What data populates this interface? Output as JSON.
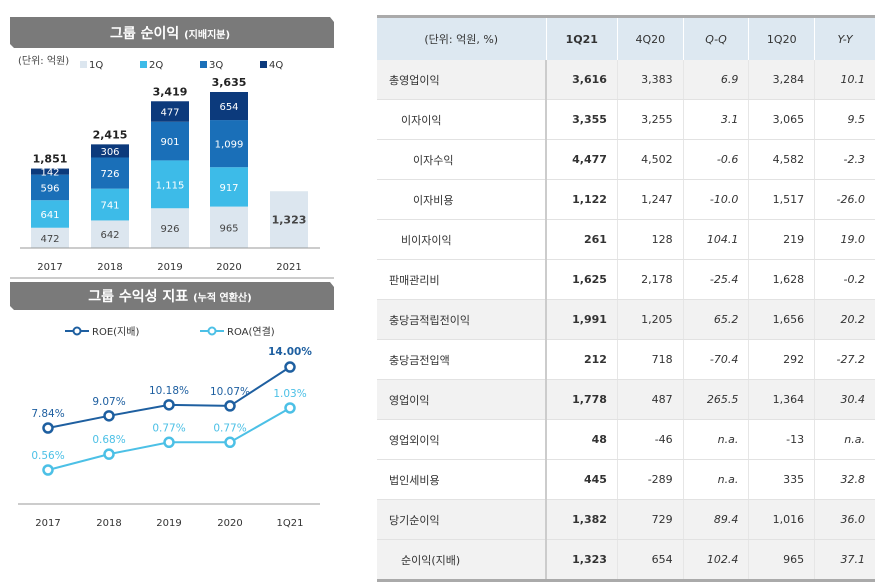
{
  "chart_data": [
    {
      "type": "bar",
      "title": "그룹 순이익",
      "subtitle": "(지배지분)",
      "unit_label": "(단위: 억원)",
      "categories": [
        "2017",
        "2018",
        "2019",
        "2020",
        "2021"
      ],
      "series": [
        {
          "name": "1Q",
          "color": "#dce6ef",
          "values": [
            472,
            642,
            926,
            965,
            1323
          ]
        },
        {
          "name": "2Q",
          "color": "#3dbbe8",
          "values": [
            641,
            741,
            1115,
            917,
            null
          ]
        },
        {
          "name": "3Q",
          "color": "#1a6fb8",
          "values": [
            596,
            726,
            901,
            1099,
            null
          ]
        },
        {
          "name": "4Q",
          "color": "#0c3a7c",
          "values": [
            142,
            306,
            477,
            654,
            null
          ]
        }
      ],
      "value_labels": [
        [
          "472",
          "641",
          "596",
          "142"
        ],
        [
          "642",
          "741",
          "726",
          "306"
        ],
        [
          "926",
          "1,115",
          "901",
          "477"
        ],
        [
          "965",
          "917",
          "1,099",
          "654"
        ],
        [
          "1,323"
        ]
      ],
      "totals": [
        "1,851",
        "2,415",
        "3,419",
        "3,635",
        ""
      ],
      "stacked": true,
      "legend": "top"
    },
    {
      "type": "line",
      "title": "그룹 수익성 지표",
      "subtitle": "(누적 연환산)",
      "categories": [
        "2017",
        "2018",
        "2019",
        "2020",
        "1Q21"
      ],
      "series": [
        {
          "name": "ROE(지배)",
          "color": "#1e5fa0",
          "values": [
            7.84,
            9.07,
            10.18,
            10.07,
            14.0
          ],
          "labels": [
            "7.84%",
            "9.07%",
            "10.18%",
            "10.07%",
            "14.00%"
          ]
        },
        {
          "name": "ROA(연결)",
          "color": "#4cc0e6",
          "values": [
            0.56,
            0.68,
            0.77,
            0.77,
            1.03
          ],
          "labels": [
            "0.56%",
            "0.68%",
            "0.77%",
            "0.77%",
            "1.03%"
          ]
        }
      ],
      "legend": "top"
    }
  ],
  "table": {
    "header": [
      "(단위: 억원, %)",
      "1Q21",
      "4Q20",
      "Q-Q",
      "1Q20",
      "Y-Y"
    ],
    "rows": [
      {
        "label": "총영업이익",
        "indent": 0,
        "shade": true,
        "cells": [
          "3,616",
          "3,383",
          "6.9",
          "3,284",
          "10.1"
        ]
      },
      {
        "label": "이자이익",
        "indent": 1,
        "shade": false,
        "cells": [
          "3,355",
          "3,255",
          "3.1",
          "3,065",
          "9.5"
        ]
      },
      {
        "label": "이자수익",
        "indent": 2,
        "shade": false,
        "cells": [
          "4,477",
          "4,502",
          "-0.6",
          "4,582",
          "-2.3"
        ]
      },
      {
        "label": "이자비용",
        "indent": 2,
        "shade": false,
        "cells": [
          "1,122",
          "1,247",
          "-10.0",
          "1,517",
          "-26.0"
        ]
      },
      {
        "label": "비이자이익",
        "indent": 1,
        "shade": false,
        "cells": [
          "261",
          "128",
          "104.1",
          "219",
          "19.0"
        ]
      },
      {
        "label": "판매관리비",
        "indent": 0,
        "shade": false,
        "cells": [
          "1,625",
          "2,178",
          "-25.4",
          "1,628",
          "-0.2"
        ]
      },
      {
        "label": "충당금적립전이익",
        "indent": 0,
        "shade": true,
        "cells": [
          "1,991",
          "1,205",
          "65.2",
          "1,656",
          "20.2"
        ]
      },
      {
        "label": "충당금전입액",
        "indent": 0,
        "shade": false,
        "cells": [
          "212",
          "718",
          "-70.4",
          "292",
          "-27.2"
        ]
      },
      {
        "label": "영업이익",
        "indent": 0,
        "shade": true,
        "cells": [
          "1,778",
          "487",
          "265.5",
          "1,364",
          "30.4"
        ]
      },
      {
        "label": "영업외이익",
        "indent": 0,
        "shade": false,
        "cells": [
          "48",
          "-46",
          "n.a.",
          "-13",
          "n.a."
        ]
      },
      {
        "label": "법인세비용",
        "indent": 0,
        "shade": false,
        "cells": [
          "445",
          "-289",
          "n.a.",
          "335",
          "32.8"
        ]
      },
      {
        "label": "당기순이익",
        "indent": 0,
        "shade": true,
        "cells": [
          "1,382",
          "729",
          "89.4",
          "1,016",
          "36.0"
        ]
      },
      {
        "label": "순이익(지배)",
        "indent": 1,
        "shade": true,
        "cells": [
          "1,323",
          "654",
          "102.4",
          "965",
          "37.1"
        ]
      }
    ]
  }
}
